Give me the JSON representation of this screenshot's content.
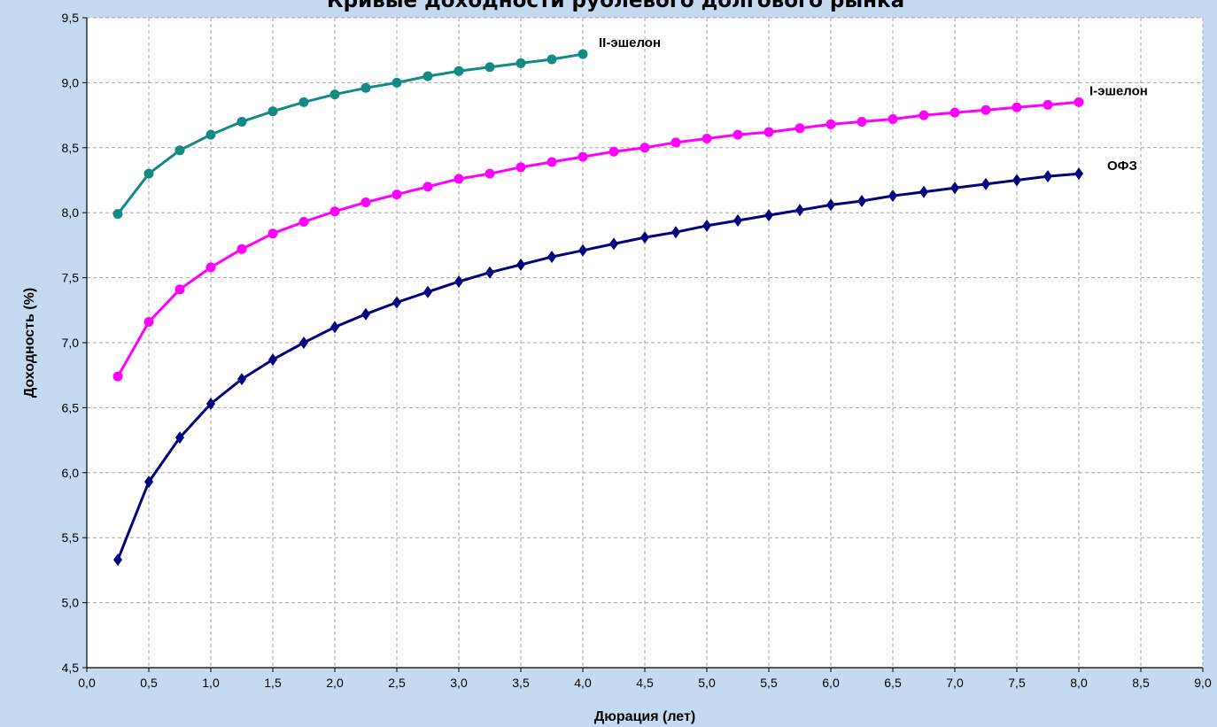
{
  "chart_data": {
    "type": "line",
    "title": "Кривые доходности рублевого долгового рынка",
    "xlabel": "Дюрация (лет)",
    "ylabel": "Доходность (%)",
    "xlim": [
      0,
      9
    ],
    "ylim": [
      4.5,
      9.5
    ],
    "x_ticks": [
      "0,0",
      "0,5",
      "1,0",
      "1,5",
      "2,0",
      "2,5",
      "3,0",
      "3,5",
      "4,0",
      "4,5",
      "5,0",
      "5,5",
      "6,0",
      "6,5",
      "7,0",
      "7,5",
      "8,0",
      "8,5",
      "9,0"
    ],
    "y_ticks": [
      "4,5",
      "5,0",
      "5,5",
      "6,0",
      "6,5",
      "7,0",
      "7,5",
      "8,0",
      "8,5",
      "9,0",
      "9,5"
    ],
    "grid": true,
    "series": [
      {
        "name": "II-эшелон",
        "color": "#138a84",
        "marker": "circle",
        "x": [
          0.25,
          0.5,
          0.75,
          1.0,
          1.25,
          1.5,
          1.75,
          2.0,
          2.25,
          2.5,
          2.75,
          3.0,
          3.25,
          3.5,
          3.75,
          4.0
        ],
        "y": [
          7.99,
          8.3,
          8.48,
          8.6,
          8.7,
          8.78,
          8.85,
          8.91,
          8.96,
          9.0,
          9.05,
          9.09,
          9.12,
          9.15,
          9.18,
          9.22
        ]
      },
      {
        "name": "I-эшелон",
        "color": "#ff00ff",
        "marker": "circle",
        "x": [
          0.25,
          0.5,
          0.75,
          1.0,
          1.25,
          1.5,
          1.75,
          2.0,
          2.25,
          2.5,
          2.75,
          3.0,
          3.25,
          3.5,
          3.75,
          4.0,
          4.25,
          4.5,
          4.75,
          5.0,
          5.25,
          5.5,
          5.75,
          6.0,
          6.25,
          6.5,
          6.75,
          7.0,
          7.25,
          7.5,
          7.75,
          8.0
        ],
        "y": [
          6.74,
          7.16,
          7.41,
          7.58,
          7.72,
          7.84,
          7.93,
          8.01,
          8.08,
          8.14,
          8.2,
          8.26,
          8.3,
          8.35,
          8.39,
          8.43,
          8.47,
          8.5,
          8.54,
          8.57,
          8.6,
          8.62,
          8.65,
          8.68,
          8.7,
          8.72,
          8.75,
          8.77,
          8.79,
          8.81,
          8.83,
          8.85
        ]
      },
      {
        "name": "ОФЗ",
        "color": "#000080",
        "marker": "diamond",
        "x": [
          0.25,
          0.5,
          0.75,
          1.0,
          1.25,
          1.5,
          1.75,
          2.0,
          2.25,
          2.5,
          2.75,
          3.0,
          3.25,
          3.5,
          3.75,
          4.0,
          4.25,
          4.5,
          4.75,
          5.0,
          5.25,
          5.5,
          5.75,
          6.0,
          6.25,
          6.5,
          6.75,
          7.0,
          7.25,
          7.5,
          7.75,
          8.0
        ],
        "y": [
          5.33,
          5.93,
          6.27,
          6.53,
          6.72,
          6.87,
          7.0,
          7.12,
          7.22,
          7.31,
          7.39,
          7.47,
          7.54,
          7.6,
          7.66,
          7.71,
          7.76,
          7.81,
          7.85,
          7.9,
          7.94,
          7.98,
          8.02,
          8.06,
          8.09,
          8.13,
          8.16,
          8.19,
          8.22,
          8.25,
          8.28,
          8.3
        ]
      }
    ]
  }
}
